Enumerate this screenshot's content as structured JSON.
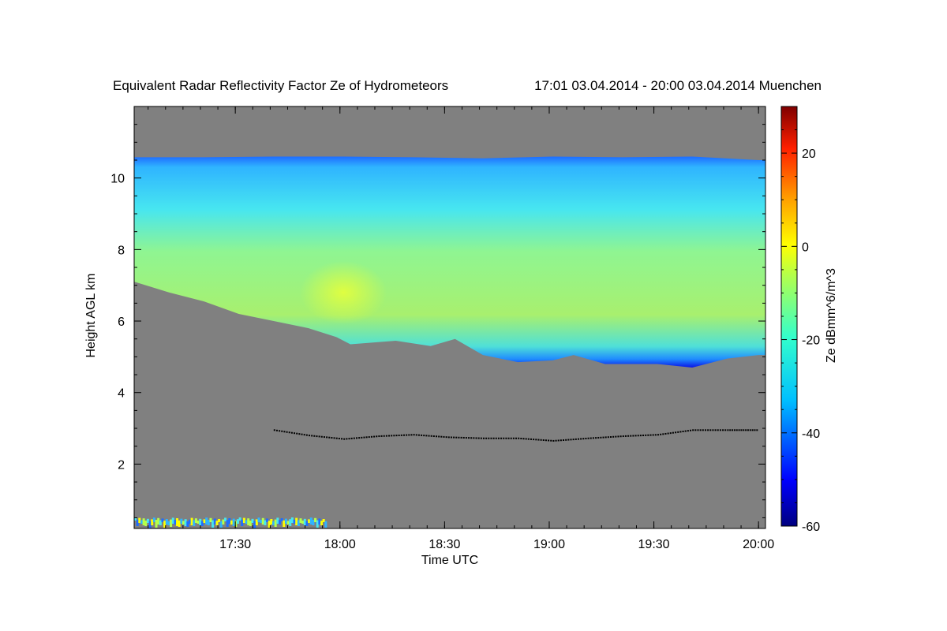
{
  "chart_data": {
    "type": "heatmap",
    "title": "Equivalent Radar Reflectivity Factor Ze of Hydrometeors",
    "subtitle": "17:01 03.04.2014 - 20:00 03.04.2014 Muenchen",
    "xlabel": "Time UTC",
    "ylabel": "Height AGL km",
    "x_range": [
      "17:01",
      "20:01"
    ],
    "x_ticks": [
      "17:30",
      "18:00",
      "18:30",
      "19:00",
      "19:30",
      "20:00"
    ],
    "x_tick_values_min": [
      30,
      60,
      90,
      120,
      150,
      180
    ],
    "ylim": [
      0.2,
      12
    ],
    "y_ticks": [
      2,
      4,
      6,
      8,
      10
    ],
    "colorbar": {
      "label": "Ze dBmm^6/m^3",
      "range": [
        -60,
        30
      ],
      "ticks": [
        20,
        0,
        -20,
        -40,
        -60
      ]
    },
    "background_color": "#808080",
    "cloud_layer": {
      "description": "",
      "top_km": [
        [
          0,
          10.58
        ],
        [
          20,
          10.58
        ],
        [
          40,
          10.6
        ],
        [
          60,
          10.6
        ],
        [
          80,
          10.58
        ],
        [
          100,
          10.55
        ],
        [
          120,
          10.6
        ],
        [
          140,
          10.58
        ],
        [
          160,
          10.6
        ],
        [
          179,
          10.5
        ]
      ],
      "base_km": [
        [
          0,
          7.1
        ],
        [
          10,
          6.8
        ],
        [
          20,
          6.55
        ],
        [
          30,
          6.2
        ],
        [
          40,
          6.0
        ],
        [
          50,
          5.8
        ],
        [
          58,
          5.55
        ],
        [
          62,
          5.35
        ],
        [
          75,
          5.45
        ],
        [
          85,
          5.3
        ],
        [
          92,
          5.5
        ],
        [
          100,
          5.05
        ],
        [
          110,
          4.85
        ],
        [
          120,
          4.9
        ],
        [
          126,
          5.05
        ],
        [
          135,
          4.8
        ],
        [
          150,
          4.8
        ],
        [
          160,
          4.7
        ],
        [
          170,
          4.95
        ],
        [
          179,
          5.05
        ]
      ],
      "max_core": {
        "time_min": 60,
        "height_km": 6.8,
        "ze_dbz": -8
      }
    },
    "melting_layer_km": [
      [
        40,
        2.95
      ],
      [
        50,
        2.8
      ],
      [
        60,
        2.7
      ],
      [
        70,
        2.78
      ],
      [
        80,
        2.82
      ],
      [
        90,
        2.75
      ],
      [
        100,
        2.72
      ],
      [
        110,
        2.72
      ],
      [
        120,
        2.65
      ],
      [
        130,
        2.72
      ],
      [
        140,
        2.78
      ],
      [
        150,
        2.82
      ],
      [
        160,
        2.95
      ],
      [
        170,
        2.95
      ],
      [
        179,
        2.95
      ]
    ]
  }
}
